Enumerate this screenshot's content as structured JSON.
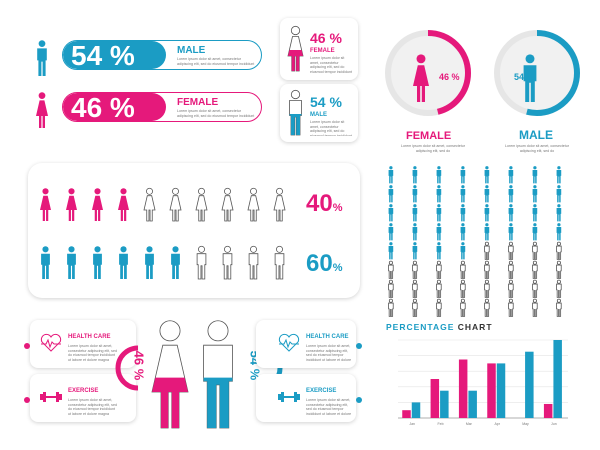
{
  "colors": {
    "pink": "#e5197b",
    "blue": "#1b9cc4",
    "gray": "#cfcfcf",
    "outline": "#555555"
  },
  "lorem_two": "Lorem ipsum dolor sit amet, consectetur adipiscing elit, sed do eiusmod tempor incididunt ut labore et dolore magna aliqua.",
  "lorem_short": "Lorem ipsum dolor sit amet, consectetur adipiscing elit, sed do",
  "bars": {
    "male": {
      "pct": "54 %",
      "label": "MALE",
      "value": 54
    },
    "female": {
      "pct": "46 %",
      "label": "FEMALE",
      "value": 46
    }
  },
  "cards": {
    "female": {
      "pct": "46 %",
      "label": "FEMALE"
    },
    "male": {
      "pct": "54 %",
      "label": "MALE"
    }
  },
  "donuts": {
    "female": {
      "pct": "46 %",
      "label": "FEMALE",
      "value": 46,
      "text": "Lorem ipsum dolor sit amet, consectetur adipiscing elit, sed do"
    },
    "male": {
      "pct": "54 %",
      "label": "MALE",
      "value": 54,
      "text": "Lorem ipsum dolor sit amet, consectetur adipiscing elit, sed do"
    }
  },
  "rows": {
    "female": {
      "pct": "40",
      "unit": "%",
      "filled": 4,
      "total": 10
    },
    "male": {
      "pct": "60",
      "unit": "%",
      "filled": 6,
      "total": 10
    }
  },
  "grid": {
    "rows": 8,
    "cols": 8,
    "filled": 36
  },
  "bottom": {
    "left_health": "HEALTH CARE",
    "left_exercise": "EXERCISE",
    "right_health": "HEALTH CARE",
    "right_exercise": "EXERCISE",
    "female_pct": "46 %",
    "male_pct": "54 %",
    "female_value": 46,
    "male_value": 54
  },
  "chart_title_a": "PERCENTAGE",
  "chart_title_b": " CHART",
  "chart_data": {
    "type": "bar",
    "categories": [
      "Jan",
      "Feb",
      "Mar",
      "Apr",
      "May",
      "Jun"
    ],
    "series": [
      {
        "values": [
          10,
          50,
          75,
          70,
          0,
          18
        ]
      },
      {
        "values": [
          20,
          35,
          35,
          70,
          85,
          100
        ]
      }
    ],
    "ylim": [
      0,
      100
    ]
  }
}
